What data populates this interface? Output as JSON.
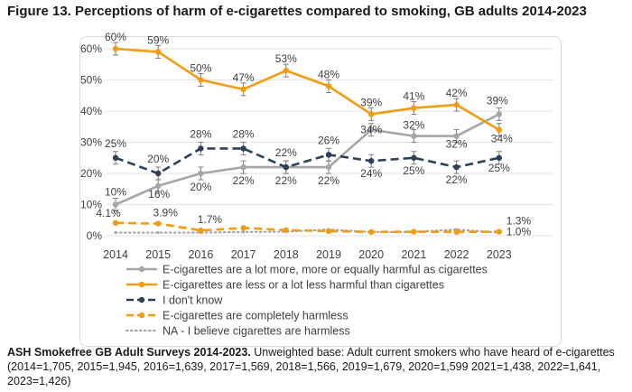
{
  "chart_data": {
    "type": "line",
    "title": "Figure 13. Perceptions of harm of e-cigarettes compared to smoking, GB adults 2014-2023",
    "categories": [
      "2014",
      "2015",
      "2016",
      "2017",
      "2018",
      "2019",
      "2020",
      "2021",
      "2022",
      "2023"
    ],
    "ylim": [
      0,
      60
    ],
    "yticks": [
      "0%",
      "10%",
      "20%",
      "30%",
      "40%",
      "50%",
      "60%"
    ],
    "ytick_values": [
      0,
      10,
      20,
      30,
      40,
      50,
      60
    ],
    "series": [
      {
        "name": "E-cigarettes are a lot more, more or equally harmful as cigarettes",
        "color": "#a6a6a6",
        "style": "solid-circle",
        "values": [
          10,
          16,
          20,
          22,
          22,
          22,
          34,
          32,
          32,
          39
        ],
        "labels": [
          "10%",
          "16%",
          "20%",
          "22%",
          "22%",
          "22%",
          "34%",
          "32%",
          "32%",
          "39%"
        ]
      },
      {
        "name": "E-cigarettes are less or a lot less harmful than cigarettes",
        "color": "#f39c12",
        "style": "solid-circle",
        "values": [
          60,
          59,
          50,
          47,
          53,
          48,
          39,
          41,
          42,
          34
        ],
        "labels": [
          "60%",
          "59%",
          "50%",
          "47%",
          "53%",
          "48%",
          "39%",
          "41%",
          "42%",
          "34%"
        ]
      },
      {
        "name": "I don't know",
        "color": "#2e4057",
        "style": "dash-circle",
        "values": [
          25,
          20,
          28,
          28,
          22,
          26,
          24,
          25,
          22,
          25
        ],
        "labels": [
          "25%",
          "20%",
          "28%",
          "28%",
          "22%",
          "26%",
          "24%",
          "25%",
          "22%",
          "25%"
        ]
      },
      {
        "name": "E-cigarettes are completely harmless",
        "color": "#f39c12",
        "style": "dash-circle",
        "values": [
          4.1,
          3.9,
          1.7,
          2.5,
          1.8,
          1.5,
          1.2,
          1.3,
          1.2,
          1.3
        ],
        "labels": [
          "4.1%",
          "3.9%",
          "1.7%",
          "",
          "",
          "",
          "",
          "",
          "",
          "1.3%"
        ]
      },
      {
        "name": "NA - I believe cigarettes are harmless",
        "color": "#a6a6a6",
        "style": "dot",
        "values": [
          1.0,
          1.0,
          1.0,
          1.2,
          1.3,
          2.0,
          1.2,
          1.2,
          2.0,
          1.0
        ],
        "labels": [
          "",
          "",
          "",
          "",
          "",
          "",
          "",
          "",
          "",
          "1.0%"
        ]
      }
    ]
  },
  "footer": {
    "source_bold": "ASH Smokefree GB Adult Surveys 2014-2023.",
    "source_text": " Unweighted base: Adult current smokers who have heard of e-cigarettes (2014=1,705, 2015=1,945, 2016=1,639, 2017=1,569, 2018=1,566, 2019=1,679, 2020=1,599 2021=1,438, 2022=1,641, 2023=1,426)"
  }
}
